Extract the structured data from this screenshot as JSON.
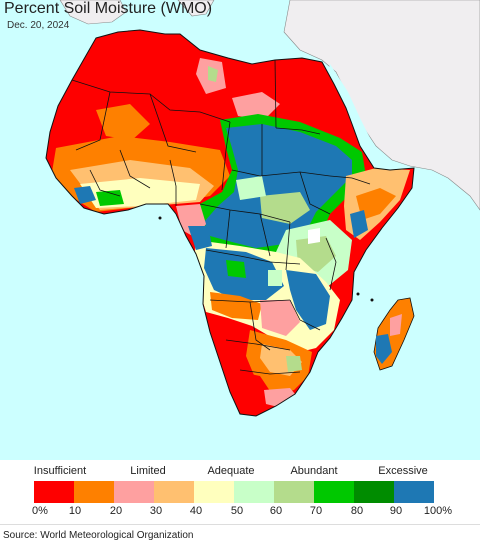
{
  "header": {
    "title": "Percent Soil Moisture (WMO)",
    "date": "Dec. 20, 2024"
  },
  "legend": {
    "categories": [
      "Insufficient",
      "Limited",
      "Adequate",
      "Abundant",
      "Excessive"
    ],
    "ticks": [
      "0%",
      "10",
      "20",
      "30",
      "40",
      "50",
      "60",
      "70",
      "80",
      "90",
      "100%"
    ],
    "colors": [
      "#fe0000",
      "#fe8000",
      "#fea0a0",
      "#ffc070",
      "#ffffbe",
      "#c8ffc8",
      "#b4dc8c",
      "#00c800",
      "#008c00",
      "#1e78b4"
    ]
  },
  "map_colors": {
    "ocean": "#ccffff",
    "other_land": "#f0eef0",
    "border": "#111111"
  },
  "footer": {
    "source": "Source: World Meteorological Organization"
  }
}
